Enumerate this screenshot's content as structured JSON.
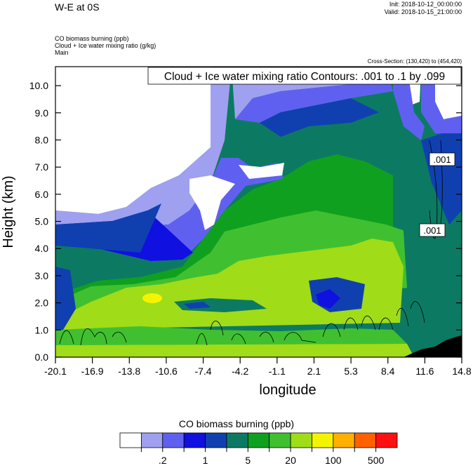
{
  "header": {
    "title": "W-E at 0S",
    "init": "Init: 2018-10-12_00:00:00",
    "valid": "Valid: 2018-10-15_21:00:00",
    "fields": [
      "CO biomass burning   (ppb)",
      "Cloud + Ice water mixing ratio   (g/kg)",
      "Main"
    ],
    "cross_section": "Cross-Section: (130,420) to (454,420)"
  },
  "chart_data": {
    "type": "heatmap",
    "xlabel": "longitude",
    "ylabel": "Height (km)",
    "xlim": [
      -20.1,
      14.8
    ],
    "ylim": [
      0.0,
      10.7
    ],
    "x_ticks": [
      "-20.1",
      "-16.9",
      "-13.8",
      "-10.6",
      "-7.4",
      "-4.2",
      "-1.1",
      "2.1",
      "5.3",
      "8.4",
      "11.6",
      "14.8"
    ],
    "y_ticks": [
      "0.0",
      "1.0",
      "2.0",
      "3.0",
      "4.0",
      "5.0",
      "6.0",
      "7.0",
      "8.0",
      "9.0",
      "10.0"
    ],
    "contour_info": "Cloud + Ice water mixing ratio Contours: .001 to .1 by .099",
    "contour_labels": [
      {
        "text": ".001",
        "x": 13.0,
        "y": 7.3
      },
      {
        "text": ".001",
        "x": 12.6,
        "y": 4.7
      }
    ],
    "colorbar": {
      "title": "CO biomass burning  (ppb)",
      "colors": [
        "#ffffff",
        "#a0a0f0",
        "#6060f0",
        "#1010e0",
        "#1040b0",
        "#0c7a63",
        "#10a020",
        "#40c030",
        "#a0dc18",
        "#f4f400",
        "#ffb000",
        "#ff6000",
        "#ff1010"
      ],
      "tick_labels": [
        ".2",
        "1",
        "5",
        "20",
        "100",
        "500"
      ]
    }
  }
}
